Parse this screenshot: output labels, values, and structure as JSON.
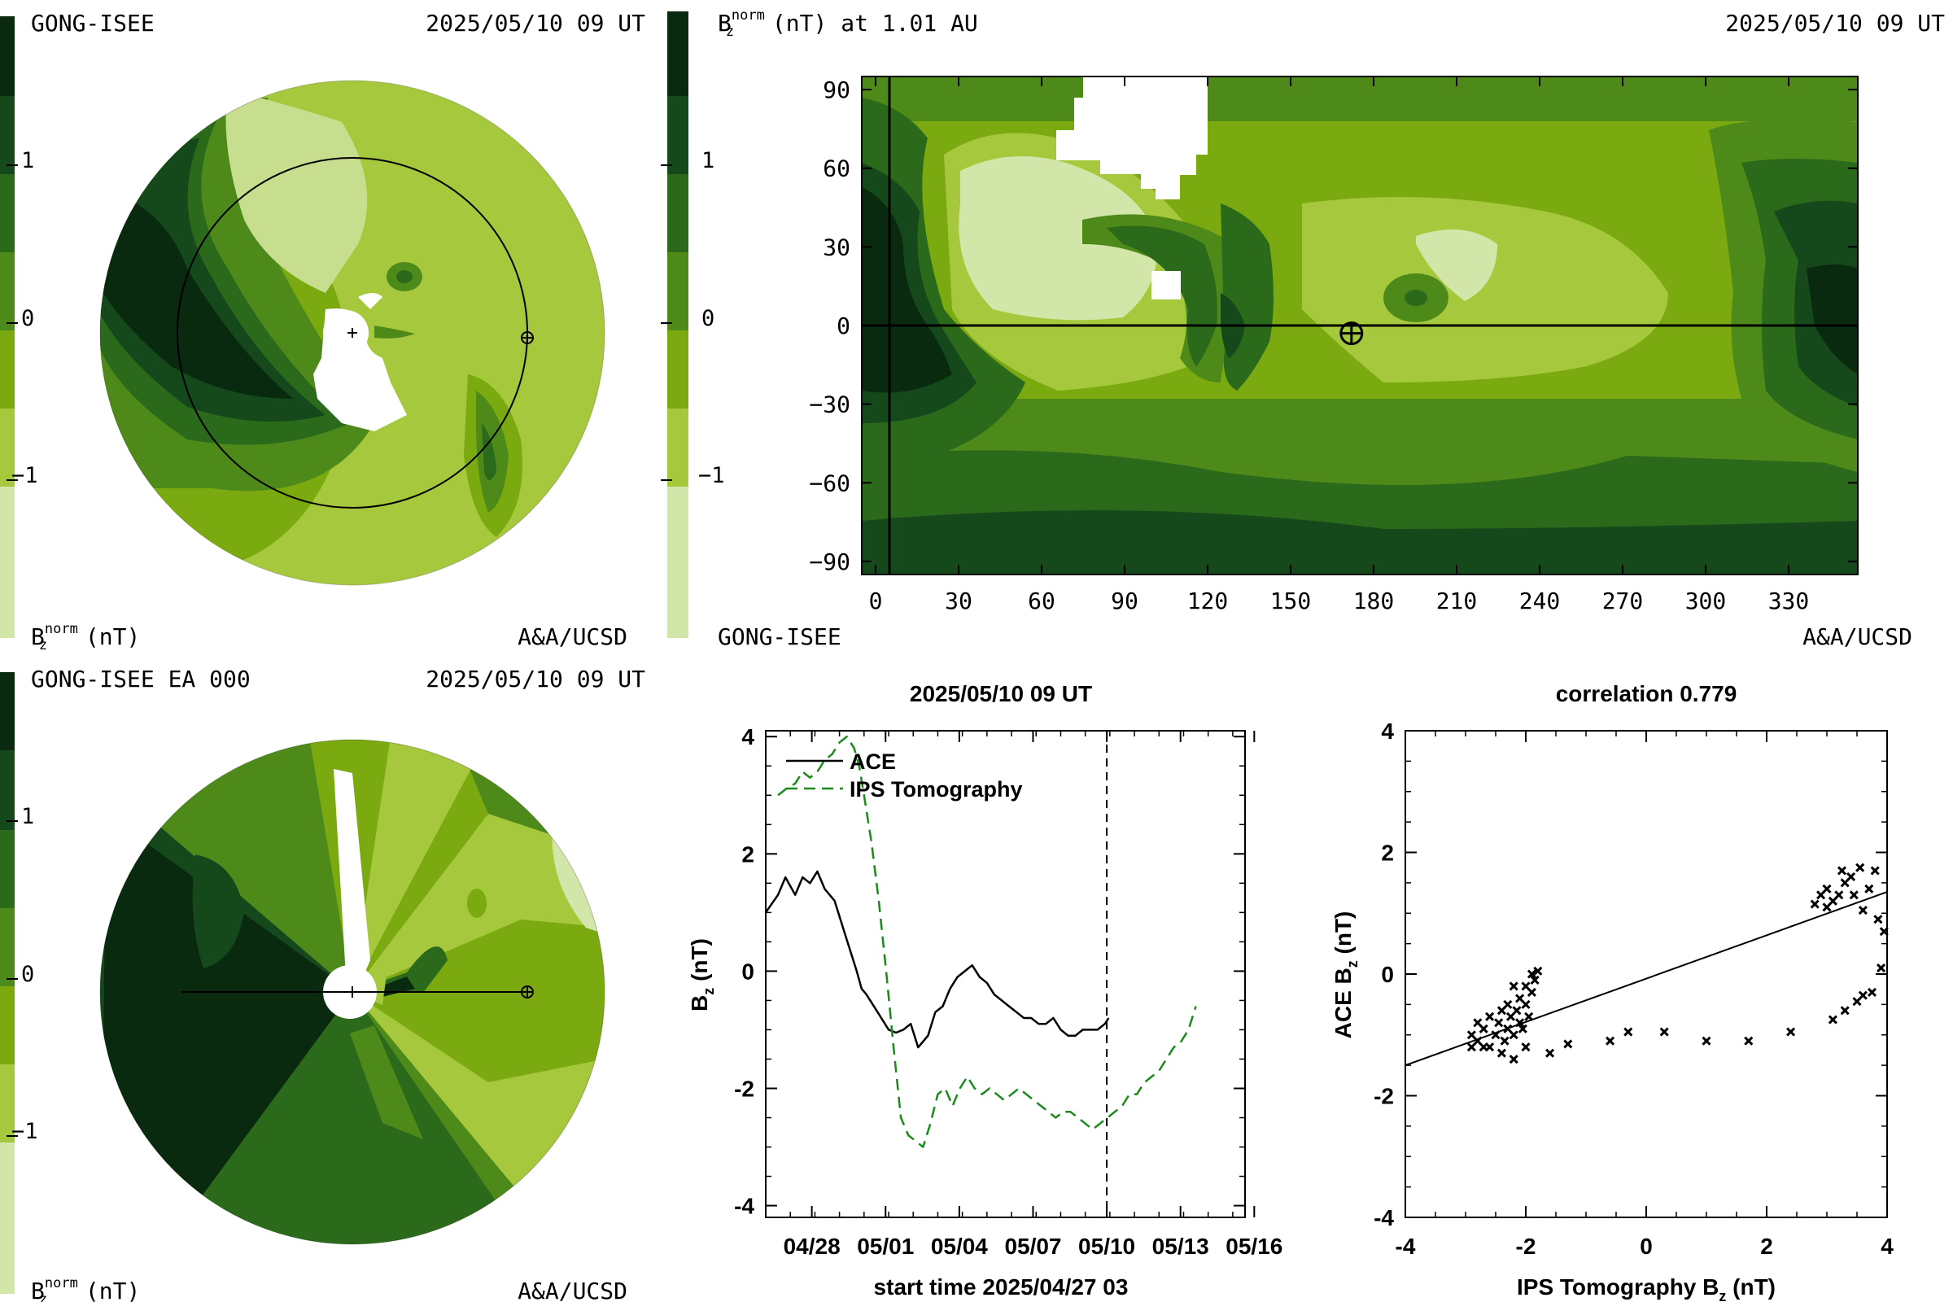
{
  "colorscale": {
    "colors": [
      "#d3e6aa",
      "#a6c83c",
      "#7aaa10",
      "#4e8a1a",
      "#2a6a1a",
      "#15481a",
      "#0a2a10"
    ],
    "tick_labels": [
      "1",
      "0",
      "−1"
    ],
    "unit_label": {
      "main": "B",
      "sub": "z",
      "sup": "norm",
      "tail": " (nT)"
    }
  },
  "panel_top_left": {
    "title_left": "GONG-ISEE",
    "title_right": "2025/05/10 09 UT",
    "footer_right": "A&A/UCSD"
  },
  "panel_bottom_left": {
    "title_left": "GONG-ISEE EA 000",
    "title_right": "2025/05/10 09 UT",
    "footer_right": "A&A/UCSD"
  },
  "panel_map": {
    "title_left_tail": " (nT) at 1.01 AU",
    "title_right": "2025/05/10 09 UT",
    "footer_left": "GONG-ISEE",
    "footer_right": "A&A/UCSD",
    "xlim": [
      -5,
      355
    ],
    "ylim": [
      -95,
      95
    ],
    "x_ticks": [
      0,
      30,
      60,
      90,
      120,
      150,
      180,
      210,
      240,
      270,
      300,
      330
    ],
    "y_ticks": [
      90,
      60,
      30,
      0,
      -30,
      -60,
      -90
    ],
    "earth_lon": 172,
    "earth_lat": -3
  },
  "chart_data": [
    {
      "type": "line",
      "title": "2025/05/10 09 UT",
      "xlabel": "start time 2025/04/27 03",
      "ylabel_main": "B",
      "ylabel_sub": "z",
      "ylabel_tail": " (nT)",
      "xlim": [
        -1,
        18.5
      ],
      "ylim": [
        -4.2,
        4.1
      ],
      "x_tick_labels": [
        "04/28",
        "05/01",
        "05/04",
        "05/07",
        "05/10",
        "05/13",
        "05/16"
      ],
      "x_tick_values": [
        0.875,
        3.875,
        6.875,
        9.875,
        12.875,
        15.875,
        18.875
      ],
      "y_ticks": [
        4,
        2,
        0,
        -2,
        -4
      ],
      "current_time_x": 12.875,
      "series": [
        {
          "name": "ACE",
          "style": "solid",
          "color": "#000000",
          "x": [
            -1,
            -0.5,
            -0.2,
            0.2,
            0.5,
            0.8,
            1.1,
            1.4,
            1.8,
            2.1,
            2.4,
            2.7,
            2.9,
            3.1,
            3.4,
            3.7,
            4,
            4.3,
            4.6,
            4.9,
            5.2,
            5.6,
            5.9,
            6.2,
            6.5,
            6.8,
            7.1,
            7.4,
            7.7,
            8,
            8.3,
            8.6,
            8.9,
            9.2,
            9.5,
            9.8,
            10.1,
            10.4,
            10.7,
            11,
            11.3,
            11.6,
            11.9,
            12.2,
            12.5,
            12.8,
            12.95
          ],
          "y": [
            1.0,
            1.3,
            1.6,
            1.3,
            1.6,
            1.5,
            1.7,
            1.4,
            1.2,
            0.8,
            0.4,
            0.0,
            -0.3,
            -0.4,
            -0.6,
            -0.8,
            -1.0,
            -1.05,
            -1.0,
            -0.9,
            -1.3,
            -1.1,
            -0.7,
            -0.6,
            -0.3,
            -0.1,
            0.0,
            0.1,
            -0.1,
            -0.2,
            -0.4,
            -0.5,
            -0.6,
            -0.7,
            -0.8,
            -0.8,
            -0.9,
            -0.9,
            -0.8,
            -1.0,
            -1.1,
            -1.1,
            -1.0,
            -1.0,
            -1.0,
            -0.9,
            -0.8
          ]
        },
        {
          "name": "IPS Tomography",
          "style": "dashed",
          "color": "#1a8a1a",
          "x": [
            -0.5,
            -0.2,
            0.2,
            0.5,
            0.8,
            1.1,
            1.4,
            1.7,
            2.0,
            2.3,
            2.6,
            2.8,
            3.0,
            3.3,
            3.6,
            3.9,
            4.2,
            4.5,
            4.8,
            5.1,
            5.4,
            5.7,
            6.0,
            6.3,
            6.6,
            6.9,
            7.2,
            7.5,
            7.8,
            8.1,
            8.4,
            8.7,
            9.0,
            9.3,
            9.6,
            9.9,
            10.2,
            10.5,
            10.8,
            11.1,
            11.4,
            11.7,
            12.0,
            12.3,
            12.6,
            12.9,
            13.2,
            13.5,
            13.8,
            14.1,
            14.4,
            14.7,
            15.0,
            15.3,
            15.6,
            15.9,
            16.2,
            16.5
          ],
          "y": [
            3.0,
            3.1,
            3.2,
            3.4,
            3.3,
            3.4,
            3.6,
            3.7,
            3.9,
            4.0,
            3.8,
            3.5,
            3.0,
            2.2,
            1.2,
            0.0,
            -1.3,
            -2.5,
            -2.8,
            -2.9,
            -3.0,
            -2.6,
            -2.1,
            -2.0,
            -2.3,
            -2.0,
            -1.8,
            -2.0,
            -2.1,
            -2.0,
            -2.1,
            -2.2,
            -2.1,
            -2.0,
            -2.1,
            -2.2,
            -2.3,
            -2.4,
            -2.5,
            -2.4,
            -2.4,
            -2.5,
            -2.6,
            -2.7,
            -2.6,
            -2.5,
            -2.4,
            -2.3,
            -2.1,
            -2.1,
            -1.9,
            -1.8,
            -1.7,
            -1.5,
            -1.3,
            -1.2,
            -1.0,
            -0.6
          ]
        }
      ]
    },
    {
      "type": "scatter",
      "title": "correlation 0.779",
      "xlabel_main": "IPS Tomography B",
      "xlabel_sub": "z",
      "xlabel_tail": " (nT)",
      "ylabel_main": "ACE B",
      "ylabel_sub": "z",
      "ylabel_tail": " (nT)",
      "xlim": [
        -4,
        4
      ],
      "ylim": [
        -4,
        4
      ],
      "x_ticks": [
        -4,
        -2,
        0,
        2,
        4
      ],
      "y_ticks": [
        4,
        2,
        0,
        -2,
        -4
      ],
      "fit_line": {
        "x": [
          -4,
          4
        ],
        "y": [
          -1.5,
          1.35
        ]
      },
      "points": [
        [
          -2.9,
          -1.0
        ],
        [
          -2.8,
          -1.1
        ],
        [
          -2.7,
          -0.9
        ],
        [
          -2.6,
          -1.2
        ],
        [
          -2.5,
          -1.0
        ],
        [
          -2.45,
          -0.8
        ],
        [
          -2.4,
          -1.3
        ],
        [
          -2.35,
          -1.1
        ],
        [
          -2.3,
          -0.9
        ],
        [
          -2.25,
          -0.7
        ],
        [
          -2.2,
          -1.0
        ],
        [
          -2.15,
          -0.6
        ],
        [
          -2.1,
          -0.8
        ],
        [
          -2.1,
          -0.4
        ],
        [
          -2.05,
          -0.9
        ],
        [
          -2.0,
          -0.5
        ],
        [
          -2.0,
          -0.2
        ],
        [
          -1.95,
          -0.7
        ],
        [
          -1.9,
          -0.3
        ],
        [
          -1.9,
          0.0
        ],
        [
          -1.85,
          -0.1
        ],
        [
          -1.8,
          0.05
        ],
        [
          -2.2,
          -0.2
        ],
        [
          -2.3,
          -0.5
        ],
        [
          -2.6,
          -0.7
        ],
        [
          -2.7,
          -1.2
        ],
        [
          -2.9,
          -1.2
        ],
        [
          -2.8,
          -0.8
        ],
        [
          -2.2,
          -1.4
        ],
        [
          -2.4,
          -0.6
        ],
        [
          -2.0,
          -1.2
        ],
        [
          -1.6,
          -1.3
        ],
        [
          -1.3,
          -1.15
        ],
        [
          -0.6,
          -1.1
        ],
        [
          -0.3,
          -0.95
        ],
        [
          0.3,
          -0.95
        ],
        [
          1.0,
          -1.1
        ],
        [
          1.7,
          -1.1
        ],
        [
          2.4,
          -0.95
        ],
        [
          3.1,
          -0.75
        ],
        [
          3.3,
          -0.6
        ],
        [
          3.5,
          -0.45
        ],
        [
          3.6,
          -0.35
        ],
        [
          3.75,
          -0.3
        ],
        [
          3.9,
          0.1
        ],
        [
          3.95,
          0.7
        ],
        [
          3.85,
          0.9
        ],
        [
          3.7,
          1.4
        ],
        [
          3.55,
          1.75
        ],
        [
          3.4,
          1.6
        ],
        [
          3.3,
          1.5
        ],
        [
          3.2,
          1.3
        ],
        [
          3.1,
          1.2
        ],
        [
          3.0,
          1.1
        ],
        [
          2.9,
          1.3
        ],
        [
          2.8,
          1.15
        ],
        [
          3.0,
          1.4
        ],
        [
          3.25,
          1.7
        ],
        [
          3.45,
          1.3
        ],
        [
          3.6,
          1.05
        ],
        [
          3.8,
          1.7
        ]
      ]
    }
  ]
}
